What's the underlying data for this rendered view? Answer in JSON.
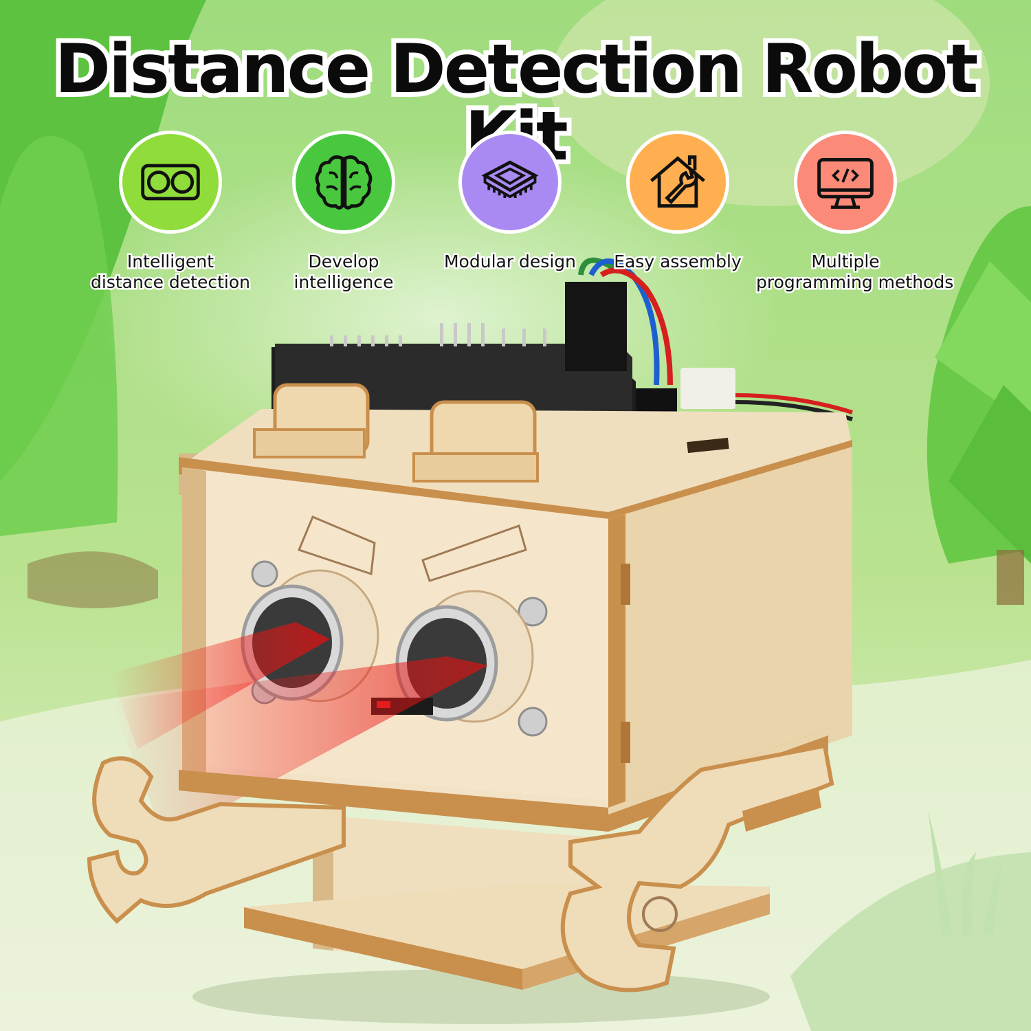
{
  "title": "Distance Detection Robot Kit",
  "features": [
    {
      "label_line1": "Intelligent",
      "label_line2": "distance detection",
      "icon": "ultrasonic-sensor-icon",
      "color": "#8fdc3a"
    },
    {
      "label_line1": "Develop",
      "label_line2": "intelligence",
      "icon": "brain-icon",
      "color": "#49c83f"
    },
    {
      "label_line1": "Modular design",
      "label_line2": "",
      "icon": "microchip-icon",
      "color": "#a98af2"
    },
    {
      "label_line1": "Easy assembly",
      "label_line2": "",
      "icon": "house-wrench-icon",
      "color": "#ffae50"
    },
    {
      "label_line1": "Multiple",
      "label_line2": "programming methods",
      "icon": "code-monitor-icon",
      "color": "#fb8a78"
    }
  ],
  "colors": {
    "background": "#8fd468",
    "wood": "#efdcb9",
    "wood_edge": "#c98f4c",
    "laser": "#e01515"
  }
}
